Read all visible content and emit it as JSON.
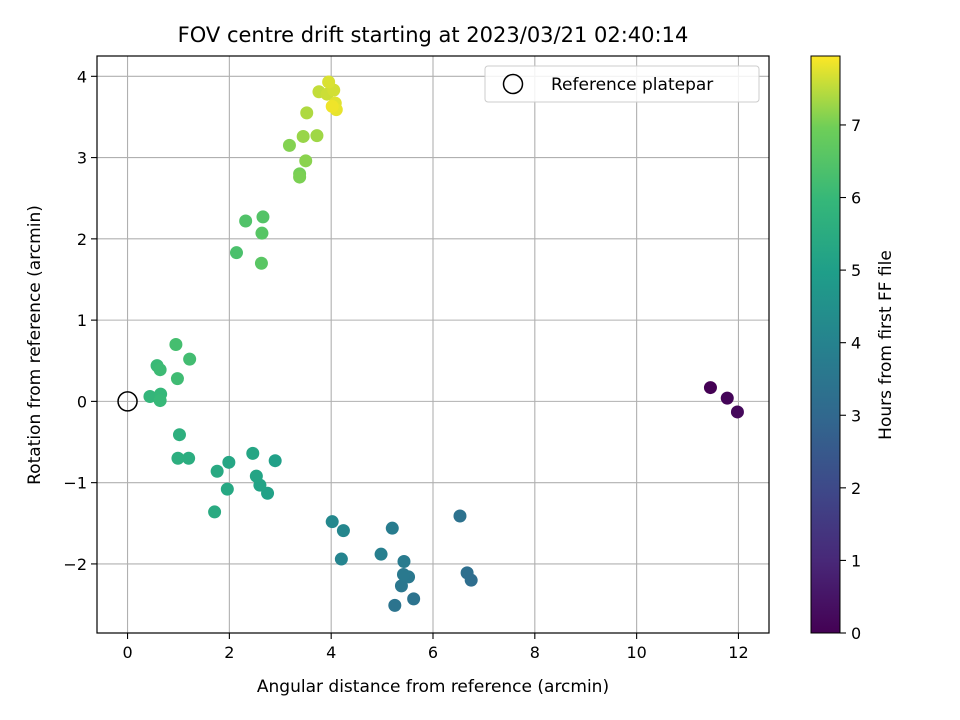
{
  "chart_data": {
    "type": "scatter",
    "title": "FOV centre drift starting at 2023/03/21 02:40:14",
    "xlabel": "Angular distance from reference (arcmin)",
    "ylabel": "Rotation from reference (arcmin)",
    "xlim": [
      -0.6,
      12.6
    ],
    "ylim": [
      -2.85,
      4.25
    ],
    "xticks": [
      0,
      2,
      4,
      6,
      8,
      10,
      12
    ],
    "yticks": [
      -2,
      -1,
      0,
      1,
      2,
      3,
      4
    ],
    "grid": true,
    "legend": {
      "placement": "top-right",
      "entries": [
        "Reference platepar"
      ]
    },
    "reference_point": {
      "x": 0,
      "y": 0
    },
    "colorbar": {
      "label": "Hours from first FF file",
      "colormap": "viridis",
      "range": [
        0,
        7.95
      ],
      "ticks": [
        0,
        1,
        2,
        3,
        4,
        5,
        6,
        7
      ]
    },
    "points": [
      {
        "x": 11.45,
        "y": 0.17,
        "c": 0.0
      },
      {
        "x": 11.78,
        "y": 0.04,
        "c": 0.1
      },
      {
        "x": 11.98,
        "y": -0.13,
        "c": 0.2
      },
      {
        "x": 6.53,
        "y": -1.41,
        "c": 3.35
      },
      {
        "x": 6.67,
        "y": -2.11,
        "c": 3.25
      },
      {
        "x": 6.75,
        "y": -2.2,
        "c": 3.2
      },
      {
        "x": 5.62,
        "y": -2.43,
        "c": 3.4
      },
      {
        "x": 5.25,
        "y": -2.51,
        "c": 3.45
      },
      {
        "x": 5.38,
        "y": -2.27,
        "c": 3.55
      },
      {
        "x": 5.52,
        "y": -2.16,
        "c": 3.6
      },
      {
        "x": 5.42,
        "y": -2.13,
        "c": 3.65
      },
      {
        "x": 5.43,
        "y": -1.97,
        "c": 3.7
      },
      {
        "x": 5.2,
        "y": -1.56,
        "c": 3.75
      },
      {
        "x": 4.98,
        "y": -1.88,
        "c": 3.85
      },
      {
        "x": 4.2,
        "y": -1.94,
        "c": 4.05
      },
      {
        "x": 4.24,
        "y": -1.59,
        "c": 4.1
      },
      {
        "x": 4.02,
        "y": -1.48,
        "c": 4.2
      },
      {
        "x": 2.9,
        "y": -0.73,
        "c": 5.05
      },
      {
        "x": 2.75,
        "y": -1.13,
        "c": 5.1
      },
      {
        "x": 2.6,
        "y": -1.03,
        "c": 5.15
      },
      {
        "x": 2.53,
        "y": -0.92,
        "c": 5.2
      },
      {
        "x": 2.46,
        "y": -0.64,
        "c": 5.25
      },
      {
        "x": 1.99,
        "y": -0.75,
        "c": 5.3
      },
      {
        "x": 1.96,
        "y": -1.08,
        "c": 5.35
      },
      {
        "x": 1.76,
        "y": -0.86,
        "c": 5.4
      },
      {
        "x": 1.71,
        "y": -1.36,
        "c": 5.45
      },
      {
        "x": 1.2,
        "y": -0.7,
        "c": 5.55
      },
      {
        "x": 0.99,
        "y": -0.7,
        "c": 5.6
      },
      {
        "x": 1.02,
        "y": -0.41,
        "c": 5.65
      },
      {
        "x": 0.44,
        "y": 0.06,
        "c": 5.9
      },
      {
        "x": 0.65,
        "y": 0.09,
        "c": 5.95
      },
      {
        "x": 0.64,
        "y": 0.01,
        "c": 6.0
      },
      {
        "x": 0.58,
        "y": 0.44,
        "c": 6.05
      },
      {
        "x": 0.64,
        "y": 0.39,
        "c": 6.1
      },
      {
        "x": 0.98,
        "y": 0.28,
        "c": 6.15
      },
      {
        "x": 1.22,
        "y": 0.52,
        "c": 6.2
      },
      {
        "x": 0.95,
        "y": 0.7,
        "c": 6.25
      },
      {
        "x": 2.14,
        "y": 1.83,
        "c": 6.35
      },
      {
        "x": 2.32,
        "y": 2.22,
        "c": 6.45
      },
      {
        "x": 2.66,
        "y": 2.27,
        "c": 6.5
      },
      {
        "x": 2.64,
        "y": 2.07,
        "c": 6.55
      },
      {
        "x": 2.63,
        "y": 1.7,
        "c": 6.6
      },
      {
        "x": 3.38,
        "y": 2.8,
        "c": 7.0
      },
      {
        "x": 3.38,
        "y": 2.76,
        "c": 7.05
      },
      {
        "x": 3.18,
        "y": 3.15,
        "c": 7.1
      },
      {
        "x": 3.5,
        "y": 2.96,
        "c": 7.15
      },
      {
        "x": 3.45,
        "y": 3.26,
        "c": 7.25
      },
      {
        "x": 3.72,
        "y": 3.27,
        "c": 7.3
      },
      {
        "x": 3.52,
        "y": 3.55,
        "c": 7.4
      },
      {
        "x": 3.76,
        "y": 3.81,
        "c": 7.55
      },
      {
        "x": 3.92,
        "y": 3.78,
        "c": 7.6
      },
      {
        "x": 4.05,
        "y": 3.83,
        "c": 7.65
      },
      {
        "x": 3.95,
        "y": 3.93,
        "c": 7.7
      },
      {
        "x": 4.08,
        "y": 3.67,
        "c": 7.75
      },
      {
        "x": 4.1,
        "y": 3.59,
        "c": 7.8
      },
      {
        "x": 4.02,
        "y": 3.63,
        "c": 7.85
      }
    ]
  }
}
